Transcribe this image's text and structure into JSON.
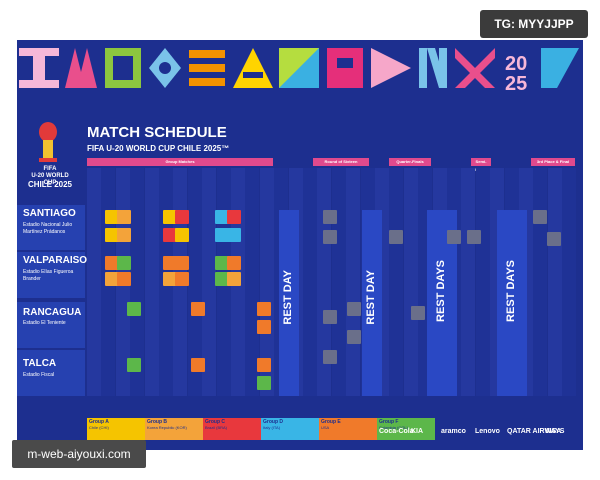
{
  "watermark_top": "TG: MYYJJPP",
  "watermark_bottom": "m-web-aiyouxi.com",
  "logo": {
    "line1": "FIFA",
    "line2": "U-20 WORLD CUP",
    "line3": "CHILE 2025"
  },
  "title": "MATCH SCHEDULE",
  "subtitle": "FIFA U-20 WORLD CUP CHILE 2025™",
  "phases": [
    "Group Matches",
    "Round of Sixteen",
    "Quarter-Finals",
    "Semi-Finals",
    "3rd Place & Final"
  ],
  "venues": [
    {
      "name": "SANTIAGO",
      "stadium": "Estadio Nacional Julio Martínez Prádanos"
    },
    {
      "name": "VALPARAISO",
      "stadium": "Estadio Elías Figueroa Brander"
    },
    {
      "name": "RANCAGUA",
      "stadium": "Estadio El Teniente"
    },
    {
      "name": "TALCA",
      "stadium": "Estadio Fiscal"
    }
  ],
  "rest_labels": [
    "REST DAY",
    "REST DAY",
    "REST DAYS",
    "REST DAYS"
  ],
  "groups": [
    {
      "name": "Group A",
      "team": "Chile (CHI)",
      "color": "#f5c400"
    },
    {
      "name": "Group B",
      "team": "Korea Republic (KOR)",
      "color": "#f3a33a"
    },
    {
      "name": "Group C",
      "team": "Brazil (BRA)",
      "color": "#e8383d"
    },
    {
      "name": "Group D",
      "team": "Italy (ITA)",
      "color": "#39b5e6"
    },
    {
      "name": "Group E",
      "team": "USA",
      "color": "#f07a2a"
    },
    {
      "name": "Group F",
      "team": "Colombia (COL)",
      "color": "#5cb74a"
    }
  ],
  "sponsors": [
    "Coca-Cola",
    "KIA",
    "aramco",
    "Lenovo",
    "QATAR AIRWAYS",
    "VISA"
  ]
}
